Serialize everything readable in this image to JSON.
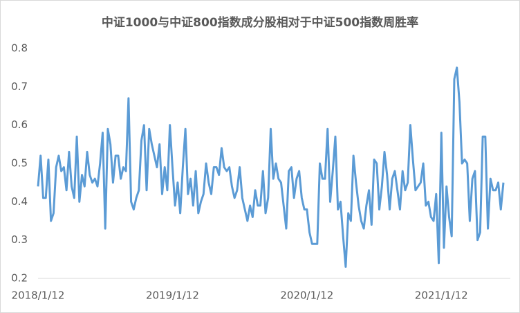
{
  "chart_data": {
    "type": "line",
    "title": "中证1000与中证800指数成分股相对于中证500指数周胜率",
    "categories": [
      "2018/1/12",
      null,
      null,
      null,
      null,
      null,
      null,
      null,
      null,
      null,
      null,
      null,
      null,
      null,
      null,
      null,
      null,
      null,
      null,
      null,
      null,
      null,
      null,
      null,
      null,
      null,
      null,
      null,
      null,
      null,
      null,
      null,
      null,
      null,
      null,
      null,
      null,
      null,
      null,
      null,
      null,
      null,
      null,
      null,
      null,
      null,
      null,
      null,
      null,
      null,
      null,
      null,
      "2019/1/12",
      null,
      null,
      null,
      null,
      null,
      null,
      null,
      null,
      null,
      null,
      null,
      null,
      null,
      null,
      null,
      null,
      null,
      null,
      null,
      null,
      null,
      null,
      null,
      null,
      null,
      null,
      null,
      null,
      null,
      null,
      null,
      null,
      null,
      null,
      null,
      null,
      null,
      null,
      null,
      null,
      null,
      null,
      null,
      null,
      null,
      null,
      null,
      null,
      null,
      null,
      null,
      "2020/1/12",
      null,
      null,
      null,
      null,
      null,
      null,
      null,
      null,
      null,
      null,
      null,
      null,
      null,
      null,
      null,
      null,
      null,
      null,
      null,
      null,
      null,
      null,
      null,
      null,
      null,
      null,
      null,
      null,
      null,
      null,
      null,
      null,
      null,
      null,
      null,
      null,
      null,
      null,
      null,
      null,
      null,
      null,
      null,
      null,
      null,
      null,
      null,
      null,
      null,
      null,
      null,
      "2021/1/12",
      null,
      null,
      null,
      null,
      null,
      null,
      null,
      null,
      null,
      null,
      null,
      null,
      null,
      null,
      null,
      null,
      null,
      null,
      null,
      null,
      null,
      null,
      null,
      null
    ],
    "values": [
      0.44,
      0.52,
      0.41,
      0.41,
      0.51,
      0.35,
      0.37,
      0.49,
      0.52,
      0.48,
      0.49,
      0.43,
      0.53,
      0.44,
      0.41,
      0.57,
      0.4,
      0.47,
      0.44,
      0.53,
      0.47,
      0.45,
      0.46,
      0.44,
      0.5,
      0.58,
      0.33,
      0.59,
      0.55,
      0.45,
      0.52,
      0.52,
      0.46,
      0.49,
      0.48,
      0.67,
      0.4,
      0.38,
      0.41,
      0.43,
      0.56,
      0.6,
      0.43,
      0.59,
      0.55,
      0.52,
      0.49,
      0.55,
      0.42,
      0.49,
      0.43,
      0.6,
      0.49,
      0.39,
      0.45,
      0.37,
      0.49,
      0.59,
      0.42,
      0.46,
      0.39,
      0.48,
      0.37,
      0.4,
      0.42,
      0.5,
      0.45,
      0.42,
      0.49,
      0.49,
      0.47,
      0.54,
      0.49,
      0.48,
      0.49,
      0.44,
      0.41,
      0.43,
      0.49,
      0.41,
      0.38,
      0.35,
      0.39,
      0.36,
      0.43,
      0.39,
      0.39,
      0.48,
      0.37,
      0.41,
      0.59,
      0.46,
      0.5,
      0.46,
      0.45,
      0.39,
      0.33,
      0.48,
      0.49,
      0.41,
      0.46,
      0.48,
      0.41,
      0.38,
      0.38,
      0.32,
      0.29,
      0.29,
      0.29,
      0.5,
      0.46,
      0.46,
      0.59,
      0.4,
      0.48,
      0.57,
      0.38,
      0.4,
      0.31,
      0.23,
      0.37,
      0.35,
      0.52,
      0.45,
      0.39,
      0.35,
      0.33,
      0.39,
      0.43,
      0.34,
      0.51,
      0.5,
      0.38,
      0.44,
      0.53,
      0.47,
      0.38,
      0.46,
      0.48,
      0.43,
      0.38,
      0.48,
      0.43,
      0.45,
      0.6,
      0.51,
      0.43,
      0.44,
      0.45,
      0.5,
      0.39,
      0.4,
      0.36,
      0.35,
      0.42,
      0.24,
      0.58,
      0.28,
      0.44,
      0.36,
      0.31,
      0.72,
      0.75,
      0.66,
      0.5,
      0.51,
      0.5,
      0.35,
      0.46,
      0.48,
      0.3,
      0.32,
      0.57,
      0.57,
      0.33,
      0.46,
      0.43,
      0.43,
      0.45,
      0.38,
      0.45
    ],
    "color": "#5b9bd5",
    "ylim": [
      0.2,
      0.8
    ],
    "yticks": [
      0.2,
      0.3,
      0.4,
      0.5,
      0.6,
      0.7,
      0.8
    ],
    "grid": false
  }
}
